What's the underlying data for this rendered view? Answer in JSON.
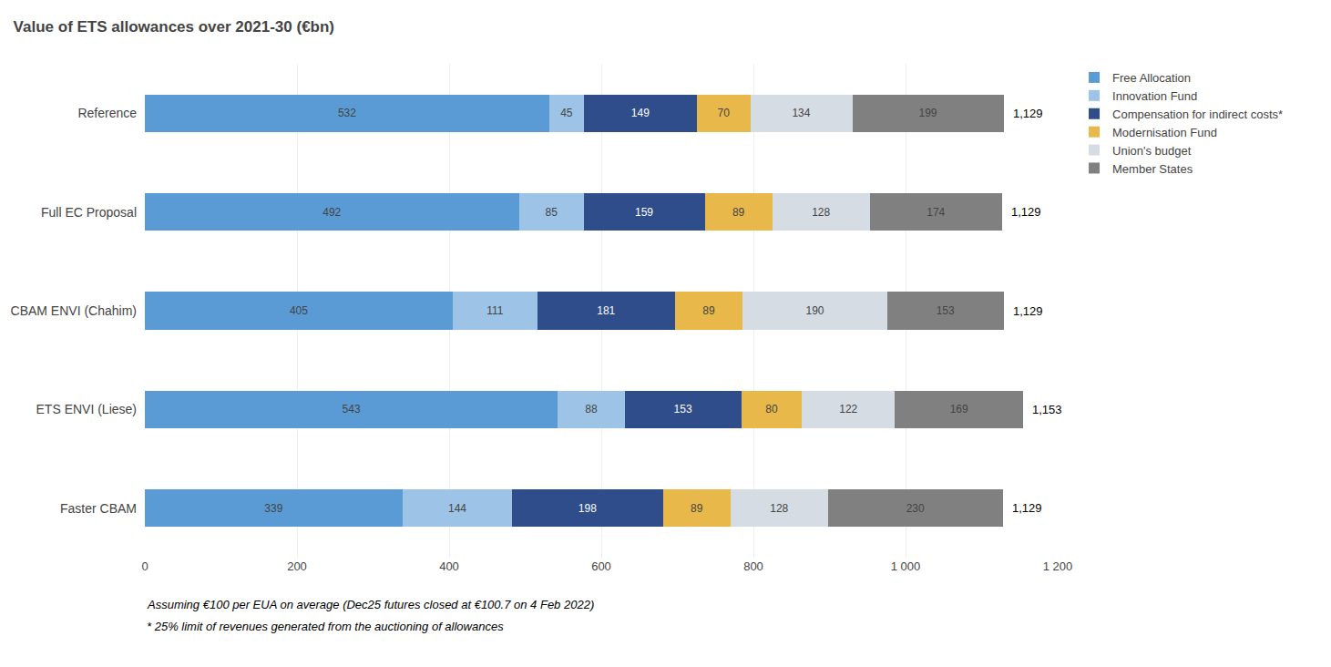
{
  "chart_data": {
    "type": "bar",
    "orientation": "horizontal",
    "stacked": true,
    "title": "Value of ETS allowances over 2021-30 (€bn)",
    "categories": [
      "Reference",
      "Full EC Proposal",
      "CBAM ENVI (Chahim)",
      "ETS ENVI (Liese)",
      "Faster CBAM"
    ],
    "series": [
      {
        "name": "Free Allocation",
        "color": "#5B9BD5",
        "values": [
          532,
          492,
          405,
          543,
          339
        ]
      },
      {
        "name": "Innovation Fund",
        "color": "#9DC3E6",
        "values": [
          45,
          85,
          111,
          88,
          144
        ]
      },
      {
        "name": "Compensation for indirect costs*",
        "color": "#2E4D8A",
        "values": [
          149,
          159,
          181,
          153,
          198
        ]
      },
      {
        "name": "Modernisation Fund",
        "color": "#E8B84B",
        "values": [
          70,
          89,
          89,
          80,
          89
        ]
      },
      {
        "name": "Union's budget",
        "color": "#D6DCE4",
        "values": [
          134,
          128,
          190,
          122,
          128
        ]
      },
      {
        "name": "Member States",
        "color": "#808080",
        "values": [
          199,
          174,
          153,
          169,
          230
        ]
      }
    ],
    "total_labels": [
      "1,129",
      "1,129",
      "1,129",
      "1,153",
      "1,129"
    ],
    "data_labels": true,
    "xlim": [
      0,
      1200
    ],
    "xticks": [
      0,
      200,
      400,
      600,
      800,
      {
        "value": 1000,
        "label": "1 000"
      },
      {
        "value": 1200,
        "label": "1 200"
      }
    ],
    "grid": true,
    "legend": "upper right",
    "footnotes": [
      "Assuming €100 per EUA on average (Dec25 futures closed at €100.7 on 4 Feb 2022)",
      "* 25% limit of revenues generated from the auctioning of allowances"
    ]
  }
}
